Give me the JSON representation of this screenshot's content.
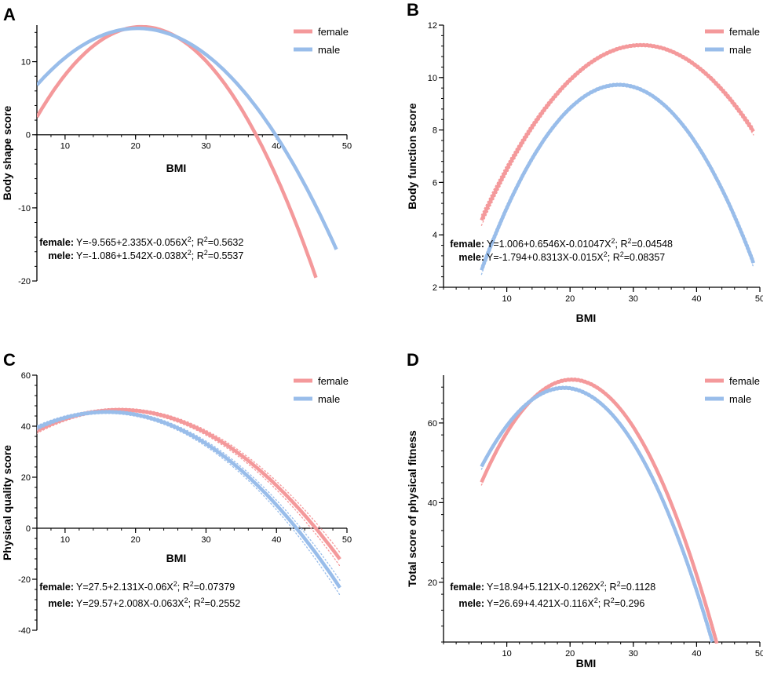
{
  "colors": {
    "female": "#f4999b",
    "male": "#99bdea"
  },
  "chart_data": [
    {
      "type": "line",
      "panel": "A",
      "ylabel": "Body shape score",
      "xlabel": "BMI",
      "x_axis_at_y": 0,
      "xlim": [
        6,
        50
      ],
      "ylim": [
        -20,
        15
      ],
      "xticks": [
        10,
        20,
        30,
        40,
        50
      ],
      "yticks": [
        -20,
        -10,
        0,
        10
      ],
      "series": [
        {
          "name": "female",
          "coef": [
            -9.565,
            2.335,
            -0.056
          ],
          "x_range": [
            6,
            45.6
          ],
          "ci": false
        },
        {
          "name": "male",
          "coef": [
            -1.086,
            1.542,
            -0.038
          ],
          "x_range": [
            6,
            48.5
          ],
          "ci": false
        }
      ],
      "equations": [
        {
          "label": "female:",
          "pre": "Y=-9.565+2.335X-0.056X",
          "sup": "2",
          "post": "; R",
          "sup2": "2",
          "tail": "=0.5632"
        },
        {
          "label": "mele:",
          "pre": "Y=-1.086+1.542X-0.038X",
          "sup": "2",
          "post": "; R",
          "sup2": "2",
          "tail": "=0.5537"
        }
      ]
    },
    {
      "type": "line",
      "panel": "B",
      "ylabel": "Body function score",
      "xlabel": "BMI",
      "x_axis_at_y": 2,
      "xlim": [
        0,
        50
      ],
      "ylim": [
        2,
        12
      ],
      "xticks": [
        10,
        20,
        30,
        40,
        50
      ],
      "yticks": [
        2,
        4,
        6,
        8,
        10,
        12
      ],
      "series": [
        {
          "name": "female",
          "coef": [
            1.006,
            0.6546,
            -0.01047
          ],
          "x_range": [
            6,
            49
          ],
          "ci": true
        },
        {
          "name": "male",
          "coef": [
            -1.794,
            0.8313,
            -0.015
          ],
          "x_range": [
            6,
            49
          ],
          "ci": true
        }
      ],
      "equations": [
        {
          "label": "female:",
          "pre": "Y=1.006+0.6546X-0.01047X",
          "sup": "2",
          "post": "; R",
          "sup2": "2",
          "tail": "=0.04548"
        },
        {
          "label": "mele:",
          "pre": "Y=-1.794+0.8313X-0.015X",
          "sup": "2",
          "post": "; R",
          "sup2": "2",
          "tail": "=0.08357"
        }
      ]
    },
    {
      "type": "line",
      "panel": "C",
      "ylabel": "Physical quality score",
      "xlabel": "BMI",
      "x_axis_at_y": 0,
      "xlim": [
        6,
        50
      ],
      "ylim": [
        -40,
        60
      ],
      "xticks": [
        10,
        20,
        30,
        40,
        50
      ],
      "yticks": [
        -40,
        -20,
        0,
        20,
        40,
        60
      ],
      "series": [
        {
          "name": "female",
          "coef": [
            27.5,
            2.131,
            -0.06
          ],
          "x_range": [
            6,
            49
          ],
          "ci": true
        },
        {
          "name": "male",
          "coef": [
            29.57,
            2.008,
            -0.063
          ],
          "x_range": [
            6,
            49
          ],
          "ci": true
        }
      ],
      "equations": [
        {
          "label": "female:",
          "pre": "Y=27.5+2.131X-0.06X",
          "sup": "2",
          "post": "; R",
          "sup2": "2",
          "tail": "=0.07379"
        },
        {
          "label": "mele:",
          "pre": "Y=29.57+2.008X-0.063X",
          "sup": "2",
          "post": "; R",
          "sup2": "2",
          "tail": "=0.2552"
        }
      ]
    },
    {
      "type": "line",
      "panel": "D",
      "ylabel": "Total score of physical fitness",
      "xlabel": "BMI",
      "x_axis_at_y": 5,
      "xlim": [
        0,
        50
      ],
      "ylim": [
        5,
        72
      ],
      "xticks": [
        10,
        20,
        30,
        40,
        50
      ],
      "yticks": [
        20,
        40,
        60
      ],
      "series": [
        {
          "name": "female",
          "coef": [
            18.94,
            5.121,
            -0.1262
          ],
          "x_range": [
            6,
            43.2
          ],
          "ci": true
        },
        {
          "name": "male",
          "coef": [
            26.69,
            4.421,
            -0.116
          ],
          "x_range": [
            6,
            42.5
          ],
          "ci": true
        }
      ],
      "equations": [
        {
          "label": "female:",
          "pre": "Y=18.94+5.121X-0.1262X",
          "sup": "2",
          "post": "; R",
          "sup2": "2",
          "tail": "=0.1128"
        },
        {
          "label": "mele:",
          "pre": "Y=26.69+4.421X-0.116X",
          "sup": "2",
          "post": "; R",
          "sup2": "2",
          "tail": "=0.296"
        }
      ]
    }
  ]
}
